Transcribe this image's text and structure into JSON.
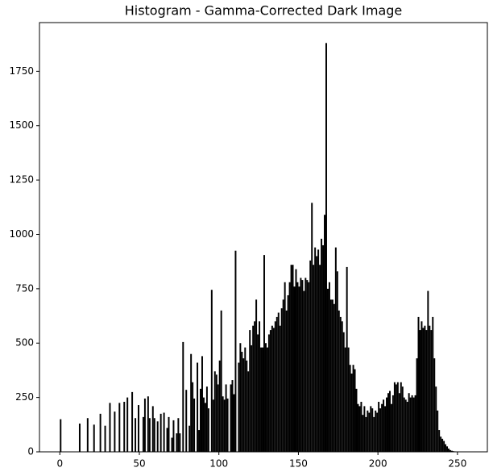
{
  "chart_data": {
    "type": "histogram",
    "title": "Histogram - Gamma-Corrected Dark Image",
    "color": "#000000",
    "bins": [
      0,
      1,
      2,
      3,
      4,
      5,
      6,
      7,
      8,
      9,
      10,
      11,
      12,
      13,
      14,
      15,
      16,
      17,
      18,
      19,
      20,
      21,
      22,
      23,
      24,
      25,
      26,
      27,
      28,
      29,
      30,
      31,
      32,
      33,
      34,
      35,
      36,
      37,
      38,
      39,
      40,
      41,
      42,
      43,
      44,
      45,
      46,
      47,
      48,
      49,
      50,
      51,
      52,
      53,
      54,
      55,
      56,
      57,
      58,
      59,
      60,
      61,
      62,
      63,
      64,
      65,
      66,
      67,
      68,
      69,
      70,
      71,
      72,
      73,
      74,
      75,
      76,
      77,
      78,
      79,
      80,
      81,
      82,
      83,
      84,
      85,
      86,
      87,
      88,
      89,
      90,
      91,
      92,
      93,
      94,
      95,
      96,
      97,
      98,
      99,
      100,
      101,
      102,
      103,
      104,
      105,
      106,
      107,
      108,
      109,
      110,
      111,
      112,
      113,
      114,
      115,
      116,
      117,
      118,
      119,
      120,
      121,
      122,
      123,
      124,
      125,
      126,
      127,
      128,
      129,
      130,
      131,
      132,
      133,
      134,
      135,
      136,
      137,
      138,
      139,
      140,
      141,
      142,
      143,
      144,
      145,
      146,
      147,
      148,
      149,
      150,
      151,
      152,
      153,
      154,
      155,
      156,
      157,
      158,
      159,
      160,
      161,
      162,
      163,
      164,
      165,
      166,
      167,
      168,
      169,
      170,
      171,
      172,
      173,
      174,
      175,
      176,
      177,
      178,
      179,
      180,
      181,
      182,
      183,
      184,
      185,
      186,
      187,
      188,
      189,
      190,
      191,
      192,
      193,
      194,
      195,
      196,
      197,
      198,
      199,
      200,
      201,
      202,
      203,
      204,
      205,
      206,
      207,
      208,
      209,
      210,
      211,
      212,
      213,
      214,
      215,
      216,
      217,
      218,
      219,
      220,
      221,
      222,
      223,
      224,
      225,
      226,
      227,
      228,
      229,
      230,
      231,
      232,
      233,
      234,
      235,
      236,
      237,
      238,
      239,
      240,
      241,
      242,
      243,
      244,
      245,
      246,
      247,
      248,
      249,
      250,
      251,
      252,
      253,
      254,
      255,
      256
    ],
    "counts": [
      150,
      0,
      0,
      0,
      0,
      0,
      0,
      0,
      0,
      0,
      0,
      0,
      130,
      0,
      0,
      0,
      0,
      155,
      0,
      0,
      0,
      125,
      0,
      0,
      0,
      175,
      0,
      0,
      120,
      0,
      0,
      225,
      0,
      0,
      185,
      0,
      0,
      225,
      0,
      0,
      230,
      0,
      250,
      0,
      0,
      275,
      0,
      155,
      0,
      215,
      0,
      0,
      160,
      245,
      0,
      255,
      155,
      0,
      210,
      155,
      0,
      140,
      0,
      175,
      0,
      180,
      0,
      110,
      160,
      0,
      65,
      145,
      0,
      85,
      155,
      85,
      0,
      505,
      0,
      285,
      0,
      120,
      450,
      320,
      245,
      0,
      410,
      100,
      290,
      440,
      250,
      225,
      300,
      200,
      0,
      745,
      240,
      370,
      355,
      310,
      420,
      650,
      255,
      240,
      310,
      245,
      0,
      310,
      330,
      265,
      925,
      0,
      410,
      500,
      460,
      430,
      480,
      420,
      370,
      560,
      490,
      580,
      600,
      700,
      540,
      600,
      480,
      480,
      905,
      500,
      480,
      540,
      560,
      580,
      570,
      600,
      620,
      640,
      580,
      660,
      700,
      780,
      650,
      720,
      780,
      860,
      860,
      760,
      840,
      780,
      760,
      800,
      790,
      740,
      800,
      790,
      780,
      880,
      1145,
      860,
      940,
      900,
      930,
      860,
      980,
      950,
      1090,
      1880,
      750,
      780,
      700,
      700,
      680,
      940,
      830,
      650,
      620,
      600,
      550,
      480,
      850,
      480,
      400,
      360,
      400,
      380,
      290,
      220,
      210,
      230,
      170,
      210,
      160,
      190,
      180,
      210,
      200,
      160,
      190,
      180,
      230,
      200,
      220,
      240,
      210,
      250,
      270,
      280,
      220,
      260,
      320,
      310,
      320,
      270,
      320,
      300,
      250,
      240,
      230,
      270,
      250,
      260,
      250,
      260,
      430,
      620,
      560,
      600,
      570,
      580,
      560,
      740,
      580,
      560,
      620,
      430,
      300,
      190,
      100,
      70,
      60,
      50,
      35,
      25,
      15,
      8,
      5,
      3,
      2,
      1,
      0,
      0,
      0,
      0,
      0,
      0
    ],
    "xlim": [
      -12.8,
      268.8
    ],
    "ylim": [
      0,
      1974
    ],
    "xticks": [
      0,
      50,
      100,
      150,
      200,
      250
    ],
    "yticks": [
      0,
      250,
      500,
      750,
      1000,
      1250,
      1500,
      1750
    ]
  }
}
